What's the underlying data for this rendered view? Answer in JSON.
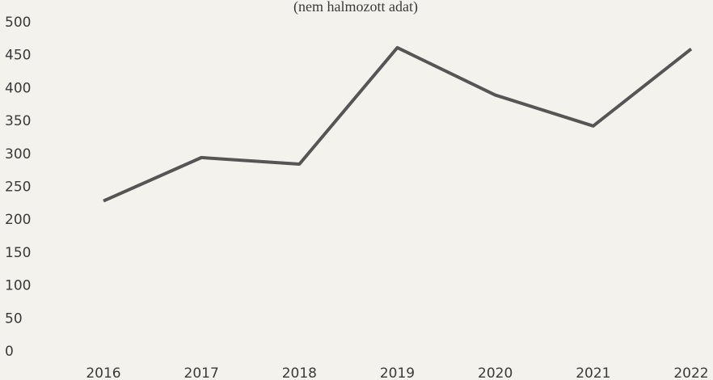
{
  "chart_data": {
    "type": "line",
    "subtitle": "(nem halmozott adat)",
    "categories": [
      "2016",
      "2017",
      "2018",
      "2019",
      "2020",
      "2021",
      "2022"
    ],
    "values": [
      229,
      295,
      285,
      462,
      390,
      343,
      460
    ],
    "color": "#555555",
    "ylim": [
      0,
      500
    ],
    "yticks": [
      0,
      50,
      100,
      150,
      200,
      250,
      300,
      350,
      400,
      450,
      500
    ],
    "grid": false
  }
}
